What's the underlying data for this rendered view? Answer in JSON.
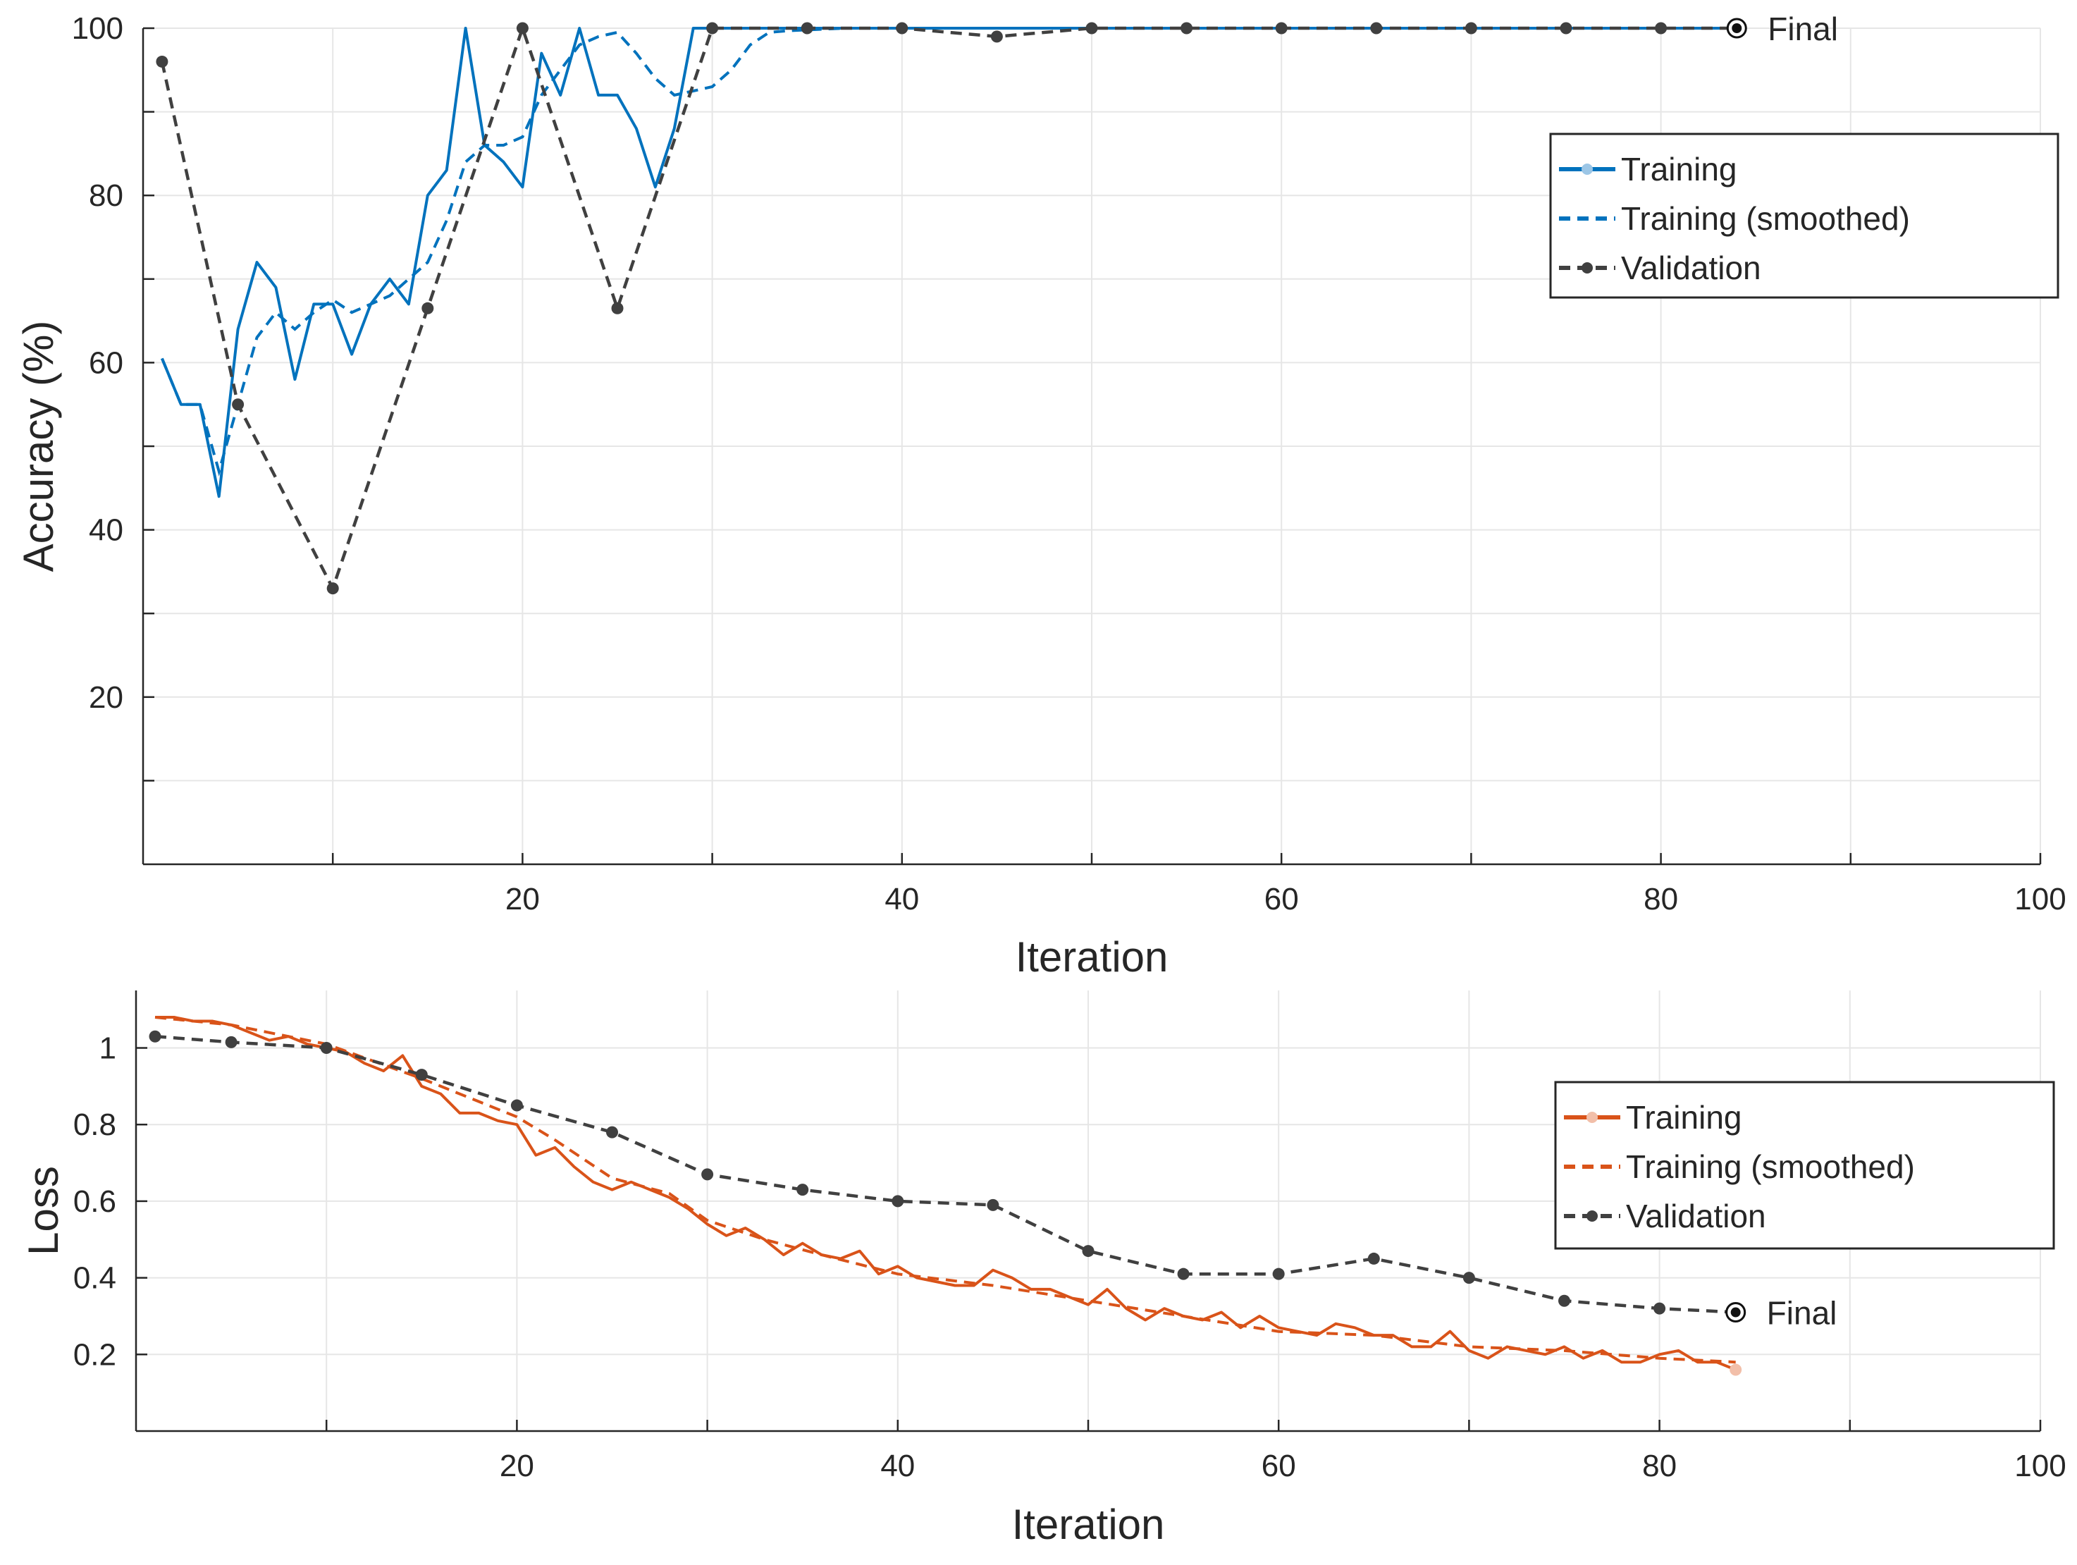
{
  "colors": {
    "accuracy_training": "#0072BD",
    "loss_training": "#D95319",
    "validation": "#404040",
    "grid": "#E6E6E6",
    "axis": "#262626"
  },
  "chart_data": [
    {
      "type": "line",
      "ylabel": "Accuracy (%)",
      "xlabel": "Iteration",
      "xlim": [
        0,
        100
      ],
      "ylim": [
        0,
        100
      ],
      "xticks": [
        20,
        40,
        60,
        80,
        100
      ],
      "yticks": [
        20,
        40,
        60,
        80,
        100
      ],
      "grid": true,
      "legend_position": "top-right",
      "final_label": "Final",
      "final_point": [
        84,
        100
      ],
      "series": [
        {
          "name": "Training",
          "style": "solid",
          "x": [
            1,
            2,
            3,
            4,
            5,
            6,
            7,
            8,
            9,
            10,
            11,
            12,
            13,
            14,
            15,
            16,
            17,
            18,
            19,
            20,
            21,
            22,
            23,
            24,
            25,
            26,
            27,
            28,
            29,
            30,
            31,
            32,
            33,
            34,
            35,
            36,
            37,
            38,
            39,
            40,
            41,
            42,
            43,
            44,
            45,
            46,
            47,
            48,
            49,
            50,
            51,
            52,
            53,
            54,
            55,
            56,
            57,
            58,
            59,
            60,
            61,
            62,
            63,
            64,
            65,
            66,
            67,
            68,
            69,
            70,
            71,
            72,
            73,
            74,
            75,
            76,
            77,
            78,
            79,
            80,
            81,
            82,
            83,
            84
          ],
          "values": [
            60.5,
            55,
            55,
            44,
            64,
            72,
            69,
            58,
            67,
            67,
            61,
            67,
            70,
            67,
            80,
            83,
            100,
            86,
            84,
            81,
            97,
            92,
            100,
            92,
            92,
            88,
            81,
            88,
            100,
            100,
            100,
            100,
            100,
            100,
            100,
            100,
            100,
            100,
            100,
            100,
            100,
            100,
            100,
            100,
            100,
            100,
            100,
            100,
            100,
            100,
            100,
            100,
            100,
            100,
            100,
            100,
            100,
            100,
            100,
            100,
            100,
            100,
            100,
            100,
            100,
            100,
            100,
            100,
            100,
            100,
            100,
            100,
            100,
            100,
            100,
            100,
            100,
            100,
            100,
            100,
            100,
            100,
            100,
            100
          ]
        },
        {
          "name": "Training (smoothed)",
          "style": "dashed",
          "x": [
            1,
            2,
            3,
            4,
            5,
            6,
            7,
            8,
            9,
            10,
            11,
            12,
            13,
            14,
            15,
            16,
            17,
            18,
            19,
            20,
            21,
            22,
            23,
            24,
            25,
            26,
            27,
            28,
            29,
            30,
            31,
            32,
            33,
            34,
            35,
            36,
            37,
            38,
            39,
            40,
            50,
            60,
            70,
            80,
            84
          ],
          "values": [
            60.5,
            55,
            55,
            47,
            55,
            63,
            66,
            64,
            66,
            67.5,
            66,
            67,
            68,
            70,
            72,
            77,
            84,
            86,
            86,
            87,
            92,
            95,
            98,
            99,
            99.5,
            97,
            94,
            92,
            92.5,
            93,
            95,
            98,
            99.5,
            99.7,
            99.8,
            99.9,
            100,
            100,
            100,
            100,
            100,
            100,
            100,
            100,
            100
          ]
        },
        {
          "name": "Validation",
          "style": "dashed-marker",
          "x": [
            1,
            5,
            10,
            15,
            20,
            25,
            30,
            35,
            40,
            45,
            50,
            55,
            60,
            65,
            70,
            75,
            80,
            84
          ],
          "values": [
            96,
            55,
            33,
            66.5,
            100,
            66.5,
            100,
            100,
            100,
            99,
            100,
            100,
            100,
            100,
            100,
            100,
            100,
            100
          ]
        }
      ]
    },
    {
      "type": "line",
      "ylabel": "Loss",
      "xlabel": "Iteration",
      "xlim": [
        0,
        100
      ],
      "ylim": [
        0,
        1.15
      ],
      "xticks": [
        20,
        40,
        60,
        80,
        100
      ],
      "yticks": [
        0.2,
        0.4,
        0.6,
        0.8,
        1
      ],
      "ytick_labels": [
        "0.2",
        "0.4",
        "0.6",
        "0.8",
        "1"
      ],
      "grid": true,
      "legend_position": "right",
      "final_label": "Final",
      "final_point": [
        84,
        0.31
      ],
      "series": [
        {
          "name": "Training",
          "style": "solid",
          "x": [
            1,
            2,
            3,
            4,
            5,
            6,
            7,
            8,
            9,
            10,
            11,
            12,
            13,
            14,
            15,
            16,
            17,
            18,
            19,
            20,
            21,
            22,
            23,
            24,
            25,
            26,
            27,
            28,
            29,
            30,
            31,
            32,
            33,
            34,
            35,
            36,
            37,
            38,
            39,
            40,
            41,
            42,
            43,
            44,
            45,
            46,
            47,
            48,
            49,
            50,
            51,
            52,
            53,
            54,
            55,
            56,
            57,
            58,
            59,
            60,
            61,
            62,
            63,
            64,
            65,
            66,
            67,
            68,
            69,
            70,
            71,
            72,
            73,
            74,
            75,
            76,
            77,
            78,
            79,
            80,
            81,
            82,
            83,
            84
          ],
          "values": [
            1.08,
            1.08,
            1.07,
            1.07,
            1.06,
            1.04,
            1.02,
            1.03,
            1.01,
            1.0,
            0.99,
            0.96,
            0.94,
            0.98,
            0.9,
            0.88,
            0.83,
            0.83,
            0.81,
            0.8,
            0.72,
            0.74,
            0.69,
            0.65,
            0.63,
            0.65,
            0.63,
            0.61,
            0.58,
            0.54,
            0.51,
            0.53,
            0.5,
            0.46,
            0.49,
            0.46,
            0.45,
            0.47,
            0.41,
            0.43,
            0.4,
            0.39,
            0.38,
            0.38,
            0.42,
            0.4,
            0.37,
            0.37,
            0.35,
            0.33,
            0.37,
            0.32,
            0.29,
            0.32,
            0.3,
            0.29,
            0.31,
            0.27,
            0.3,
            0.27,
            0.26,
            0.25,
            0.28,
            0.27,
            0.25,
            0.25,
            0.22,
            0.22,
            0.26,
            0.21,
            0.19,
            0.22,
            0.21,
            0.2,
            0.22,
            0.19,
            0.21,
            0.18,
            0.18,
            0.2,
            0.21,
            0.18,
            0.18,
            0.16
          ]
        },
        {
          "name": "Training (smoothed)",
          "style": "dashed",
          "x": [
            1,
            5,
            10,
            15,
            20,
            22,
            25,
            28,
            30,
            33,
            36,
            40,
            45,
            50,
            55,
            60,
            65,
            70,
            75,
            80,
            84
          ],
          "values": [
            1.08,
            1.06,
            1.01,
            0.92,
            0.82,
            0.76,
            0.66,
            0.62,
            0.55,
            0.5,
            0.46,
            0.41,
            0.38,
            0.34,
            0.3,
            0.26,
            0.25,
            0.22,
            0.21,
            0.19,
            0.18
          ]
        },
        {
          "name": "Validation",
          "style": "dashed-marker",
          "x": [
            1,
            5,
            10,
            15,
            20,
            25,
            30,
            35,
            40,
            45,
            50,
            55,
            60,
            65,
            70,
            75,
            80,
            84
          ],
          "values": [
            1.03,
            1.015,
            1.0,
            0.93,
            0.85,
            0.78,
            0.67,
            0.63,
            0.6,
            0.59,
            0.47,
            0.41,
            0.41,
            0.45,
            0.4,
            0.34,
            0.32,
            0.31
          ]
        }
      ]
    }
  ]
}
